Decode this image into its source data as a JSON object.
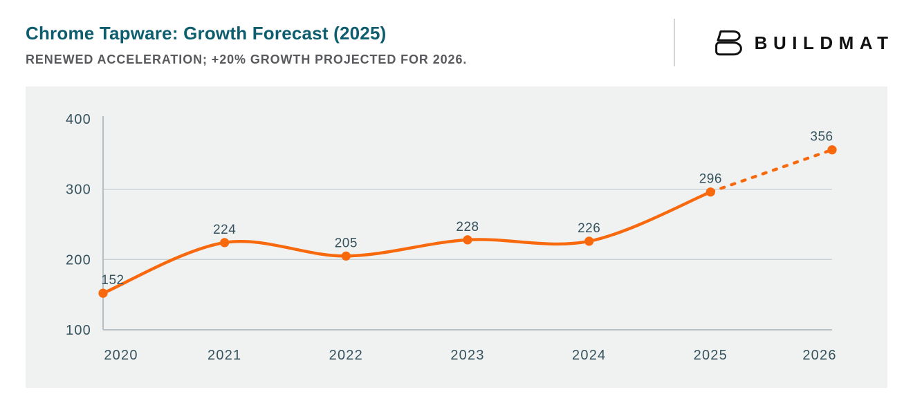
{
  "header": {
    "title": "Chrome Tapware: Growth Forecast (2025)",
    "subtitle": "RENEWED ACCELERATION; +20% GROWTH PROJECTED FOR 2026.",
    "brand": {
      "name": "BUILDMAT",
      "icon": "buildmat-b-logo"
    }
  },
  "colors": {
    "title_teal": "#0e5d6e",
    "subtitle_gray": "#58595c",
    "accent_orange": "#f8690e",
    "chart_text": "#35525d",
    "gridline": "#c8d0d3",
    "axis_line": "#b6c0c4",
    "panel_bg": "#f0f1f1",
    "logo_black": "#111111",
    "divider_gray": "#d4d5d6"
  },
  "chart_data": {
    "type": "line",
    "title": "Chrome Tapware: Growth Forecast (2025)",
    "subtitle": "RENEWED ACCELERATION; +20% GROWTH PROJECTED FOR 2026.",
    "categories": [
      "2020",
      "2021",
      "2022",
      "2023",
      "2024",
      "2025",
      "2026"
    ],
    "values": [
      152,
      224,
      205,
      228,
      226,
      296,
      356
    ],
    "data_labels": [
      "152",
      "224",
      "205",
      "228",
      "226",
      "296",
      "356"
    ],
    "forecast_dashed_from_index": 5,
    "ylim": [
      100,
      400
    ],
    "yticks": [
      100,
      200,
      300,
      400
    ],
    "gridlines_at": [
      200,
      300
    ],
    "grid": "horizontal-only",
    "legend_position": "none",
    "line_color": "#f8690e",
    "marker": "filled-circle"
  }
}
